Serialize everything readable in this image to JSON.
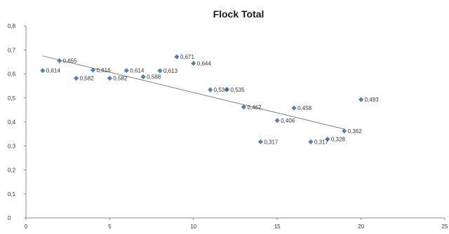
{
  "chart_data": {
    "type": "scatter",
    "title": "Flock Total",
    "xlabel": "",
    "ylabel": "",
    "xlim": [
      0,
      25
    ],
    "ylim": [
      0,
      0.8
    ],
    "x_ticks": [
      "0",
      "5",
      "10",
      "15",
      "20",
      "25"
    ],
    "y_ticks": [
      "0",
      "0,1",
      "0,2",
      "0,3",
      "0,4",
      "0,5",
      "0,6",
      "0,7",
      "0,8"
    ],
    "grid": false,
    "legend": "none",
    "marker_color": "#4f81bd",
    "trendline": {
      "type": "linear",
      "x": [
        1,
        19
      ],
      "y": [
        0.675,
        0.37
      ]
    },
    "points": [
      {
        "x": 1,
        "y": 0.614,
        "label": "0,614"
      },
      {
        "x": 2,
        "y": 0.655,
        "label": "0,655"
      },
      {
        "x": 3,
        "y": 0.582,
        "label": "0,582"
      },
      {
        "x": 4,
        "y": 0.616,
        "label": "0,616"
      },
      {
        "x": 5,
        "y": 0.582,
        "label": "0,582"
      },
      {
        "x": 6,
        "y": 0.614,
        "label": "0,614"
      },
      {
        "x": 7,
        "y": 0.588,
        "label": "0,588"
      },
      {
        "x": 8,
        "y": 0.613,
        "label": "0,613"
      },
      {
        "x": 9,
        "y": 0.671,
        "label": "0,671"
      },
      {
        "x": 10,
        "y": 0.644,
        "label": "0,644"
      },
      {
        "x": 11,
        "y": 0.534,
        "label": "0,534"
      },
      {
        "x": 12,
        "y": 0.535,
        "label": "0,535"
      },
      {
        "x": 13,
        "y": 0.462,
        "label": "0,462"
      },
      {
        "x": 14,
        "y": 0.317,
        "label": "0,317"
      },
      {
        "x": 15,
        "y": 0.406,
        "label": "0,406"
      },
      {
        "x": 16,
        "y": 0.458,
        "label": "0,458"
      },
      {
        "x": 17,
        "y": 0.317,
        "label": "0,317"
      },
      {
        "x": 18,
        "y": 0.328,
        "label": "0,328"
      },
      {
        "x": 19,
        "y": 0.362,
        "label": "0,362"
      },
      {
        "x": 20,
        "y": 0.493,
        "label": "0,493"
      }
    ]
  }
}
